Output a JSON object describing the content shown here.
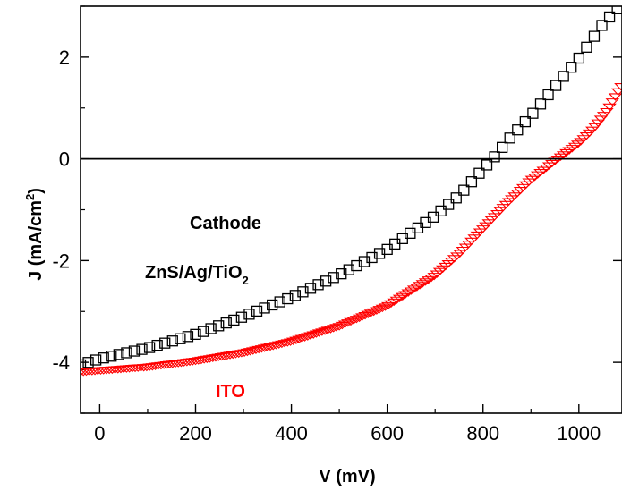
{
  "chart_data": {
    "type": "scatter",
    "xlabel": "V (mV)",
    "ylabel": "J (mA/cm2)",
    "ylabel_parts": {
      "main": "J (mA/cm",
      "sup": "2",
      "close": ")"
    },
    "xlim": [
      -40,
      1090
    ],
    "ylim": [
      -5.0,
      3.0
    ],
    "x_ticks": [
      0,
      200,
      400,
      600,
      800,
      1000
    ],
    "y_ticks": [
      -4,
      -2,
      0,
      2
    ],
    "zero_line": true,
    "annotations": {
      "cathode": "Cathode",
      "zns_main": "ZnS/Ag/TiO",
      "zns_sub": "2",
      "ito": "ITO"
    },
    "colors": {
      "zns": "#000000",
      "ito": "#ff0000",
      "axis": "#000000"
    },
    "series": [
      {
        "key": "zns",
        "marker": "square",
        "x": [
          -40,
          0,
          100,
          200,
          300,
          400,
          500,
          600,
          700,
          750,
          800,
          830,
          850,
          900,
          950,
          1000,
          1050,
          1080
        ],
        "y": [
          -4.05,
          -3.93,
          -3.72,
          -3.45,
          -3.1,
          -2.72,
          -2.28,
          -1.78,
          -1.12,
          -0.72,
          -0.2,
          0.1,
          0.35,
          0.85,
          1.42,
          1.98,
          2.65,
          2.95
        ]
      },
      {
        "key": "ito",
        "marker": "triangle-down",
        "x": [
          -40,
          0,
          100,
          200,
          300,
          400,
          500,
          600,
          700,
          750,
          800,
          850,
          900,
          950,
          1000,
          1030,
          1060,
          1090
        ],
        "y": [
          -4.2,
          -4.17,
          -4.1,
          -3.98,
          -3.82,
          -3.6,
          -3.3,
          -2.9,
          -2.3,
          -1.88,
          -1.38,
          -0.88,
          -0.42,
          -0.05,
          0.3,
          0.58,
          0.95,
          1.45
        ]
      }
    ]
  }
}
